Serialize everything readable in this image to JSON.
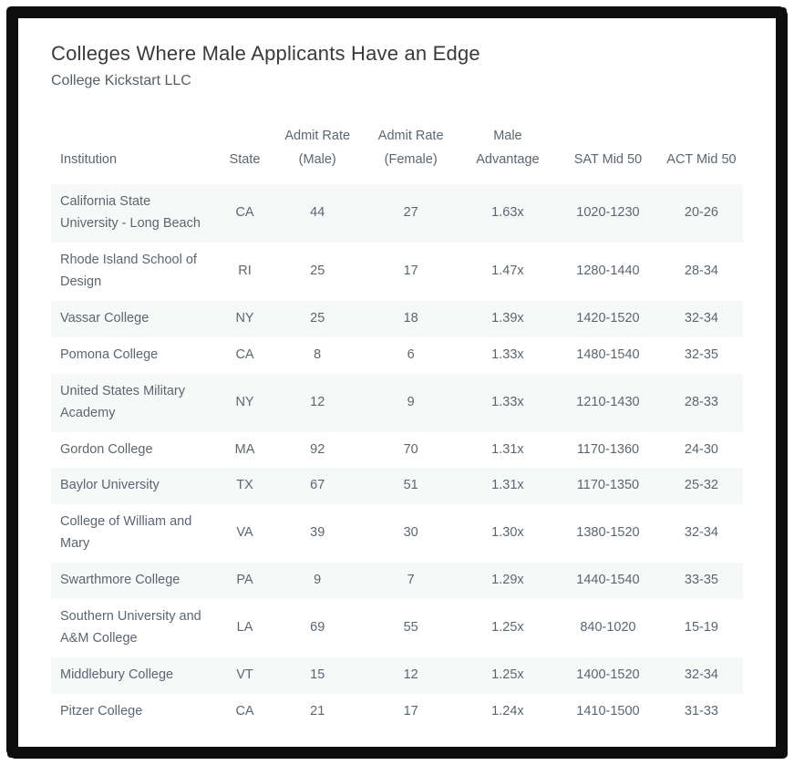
{
  "header": {
    "title": "Colleges Where Male Applicants Have an Edge",
    "subtitle": "College Kickstart LLC"
  },
  "chart_data": {
    "type": "table",
    "columns": [
      "Institution",
      "State",
      "Admit Rate\n(Male)",
      "Admit Rate\n(Female)",
      "Male\nAdvantage",
      "SAT Mid 50",
      "ACT Mid 50"
    ],
    "rows": [
      [
        "California State University - Long Beach",
        "CA",
        "44",
        "27",
        "1.63x",
        "1020-1230",
        "20-26"
      ],
      [
        "Rhode Island School of Design",
        "RI",
        "25",
        "17",
        "1.47x",
        "1280-1440",
        "28-34"
      ],
      [
        "Vassar College",
        "NY",
        "25",
        "18",
        "1.39x",
        "1420-1520",
        "32-34"
      ],
      [
        "Pomona College",
        "CA",
        "8",
        "6",
        "1.33x",
        "1480-1540",
        "32-35"
      ],
      [
        "United States Military Academy",
        "NY",
        "12",
        "9",
        "1.33x",
        "1210-1430",
        "28-33"
      ],
      [
        "Gordon College",
        "MA",
        "92",
        "70",
        "1.31x",
        "1170-1360",
        "24-30"
      ],
      [
        "Baylor University",
        "TX",
        "67",
        "51",
        "1.31x",
        "1170-1350",
        "25-32"
      ],
      [
        "College of William and Mary",
        "VA",
        "39",
        "30",
        "1.30x",
        "1380-1520",
        "32-34"
      ],
      [
        "Swarthmore College",
        "PA",
        "9",
        "7",
        "1.29x",
        "1440-1540",
        "33-35"
      ],
      [
        "Southern University and A&M College",
        "LA",
        "69",
        "55",
        "1.25x",
        "840-1020",
        "15-19"
      ],
      [
        "Middlebury College",
        "VT",
        "15",
        "12",
        "1.25x",
        "1400-1520",
        "32-34"
      ],
      [
        "Pitzer College",
        "CA",
        "21",
        "17",
        "1.24x",
        "1410-1500",
        "31-33"
      ]
    ]
  },
  "colors": {
    "frame_border": "#0e0e0e",
    "stripe": "#f7f8f8",
    "text": "#5b6670",
    "title": "#3a3a3a"
  }
}
